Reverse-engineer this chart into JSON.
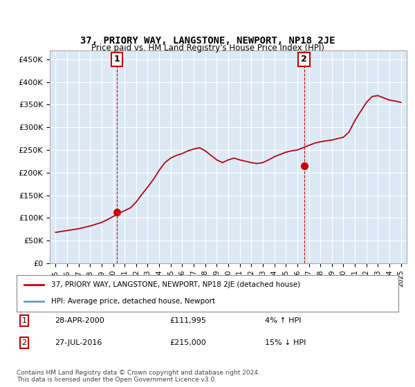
{
  "title": "37, PRIORY WAY, LANGSTONE, NEWPORT, NP18 2JE",
  "subtitle": "Price paid vs. HM Land Registry's House Price Index (HPI)",
  "ylabel": "",
  "background_color": "#dce9f5",
  "plot_bg": "#dce9f5",
  "grid_color": "#ffffff",
  "transaction1_date": "28-APR-2000",
  "transaction1_price": 111995,
  "transaction1_label": "1",
  "transaction1_hpi": "4% ↑ HPI",
  "transaction2_date": "27-JUL-2016",
  "transaction2_price": 215000,
  "transaction2_label": "2",
  "transaction2_hpi": "15% ↓ HPI",
  "legend_line1": "37, PRIORY WAY, LANGSTONE, NEWPORT, NP18 2JE (detached house)",
  "legend_line2": "HPI: Average price, detached house, Newport",
  "footer": "Contains HM Land Registry data © Crown copyright and database right 2024.\nThis data is licensed under the Open Government Licence v3.0.",
  "ylim": [
    0,
    470000
  ],
  "yticks": [
    0,
    50000,
    100000,
    150000,
    200000,
    250000,
    300000,
    350000,
    400000,
    450000
  ],
  "red_color": "#cc0000",
  "blue_color": "#6699cc",
  "marker_color": "#cc0000",
  "vline_color": "#cc0000",
  "box_color": "#cc0000"
}
